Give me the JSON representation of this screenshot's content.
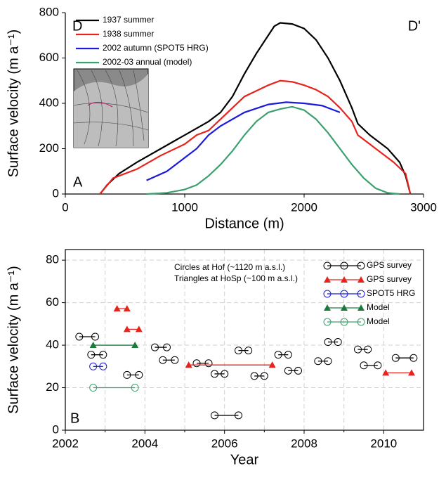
{
  "chart_data": [
    {
      "type": "line",
      "xlabel": "Distance  (m)",
      "ylabel": "Surface velocity (m a⁻¹)",
      "labels": [
        "D",
        "D'",
        "A"
      ],
      "xlim": [
        0,
        3000
      ],
      "ylim": [
        0,
        800
      ],
      "xticks": [
        0,
        1000,
        2000,
        3000
      ],
      "yticks": [
        0,
        200,
        400,
        600,
        800
      ],
      "grid": false,
      "legend": "upper left",
      "series": [
        {
          "name": "1937 summer",
          "color": "#000000",
          "x": [
            290,
            350,
            450,
            600,
            800,
            1000,
            1200,
            1300,
            1400,
            1500,
            1600,
            1700,
            1750,
            1800,
            1900,
            2000,
            2100,
            2200,
            2300,
            2400,
            2450,
            2550,
            2700,
            2800,
            2850,
            2890
          ],
          "values": [
            0,
            40,
            90,
            140,
            200,
            260,
            320,
            360,
            430,
            530,
            620,
            700,
            740,
            755,
            750,
            730,
            680,
            600,
            500,
            380,
            310,
            260,
            200,
            140,
            80,
            0
          ]
        },
        {
          "name": "1938 summer",
          "color": "#e8231d",
          "x": [
            290,
            400,
            600,
            800,
            1000,
            1100,
            1200,
            1300,
            1400,
            1500,
            1700,
            1800,
            1900,
            2000,
            2100,
            2200,
            2300,
            2400,
            2450,
            2600,
            2750,
            2850,
            2890
          ],
          "values": [
            0,
            70,
            110,
            170,
            220,
            260,
            280,
            330,
            380,
            430,
            480,
            500,
            495,
            480,
            460,
            430,
            380,
            320,
            260,
            200,
            140,
            90,
            0
          ]
        },
        {
          "name": "2002 autumn (SPOT5 HRG)",
          "color": "#1a1adb",
          "x": [
            680,
            850,
            1000,
            1100,
            1200,
            1300,
            1500,
            1700,
            1850,
            2000,
            2150,
            2300
          ],
          "values": [
            60,
            100,
            160,
            200,
            260,
            300,
            360,
            395,
            405,
            400,
            390,
            360
          ]
        },
        {
          "name": "2002-03 annual (model)",
          "color": "#3c9f6e",
          "x": [
            680,
            850,
            1000,
            1100,
            1200,
            1300,
            1400,
            1500,
            1600,
            1700,
            1800,
            1900,
            2000,
            2100,
            2200,
            2300,
            2400,
            2500,
            2600,
            2700,
            2800
          ],
          "values": [
            0,
            5,
            20,
            40,
            80,
            130,
            190,
            260,
            320,
            360,
            375,
            385,
            370,
            330,
            270,
            200,
            130,
            70,
            25,
            5,
            0
          ]
        }
      ]
    },
    {
      "type": "segments",
      "xlabel": "Year",
      "ylabel": "Surface velocity (m a⁻¹)",
      "labels": [
        "B"
      ],
      "annotations": [
        "Circles at     Hof    (~1120 m a.s.l.)",
        "Triangles at HoSp (~100 m a.s.l.)"
      ],
      "xlim": [
        2002,
        2011
      ],
      "ylim": [
        0,
        85
      ],
      "xticks": [
        2002,
        2004,
        2006,
        2008,
        2010
      ],
      "xminorticks": [
        2003,
        2005,
        2007,
        2009
      ],
      "yticks": [
        0,
        20,
        40,
        60,
        80
      ],
      "grid": true,
      "legend": "upper right",
      "series": [
        {
          "name": "GPS survey",
          "color": "#000000",
          "marker": "circle",
          "segments": [
            {
              "x": [
                2002.35,
                2002.75
              ],
              "value": 44
            },
            {
              "x": [
                2002.65,
                2002.95
              ],
              "value": 35.5
            },
            {
              "x": [
                2003.55,
                2003.85
              ],
              "value": 26
            },
            {
              "x": [
                2004.25,
                2004.55
              ],
              "value": 39
            },
            {
              "x": [
                2004.45,
                2004.75
              ],
              "value": 33
            },
            {
              "x": [
                2005.3,
                2005.6
              ],
              "value": 31.5
            },
            {
              "x": [
                2005.75,
                2006.0
              ],
              "value": 26.5
            },
            {
              "x": [
                2005.75,
                2006.35
              ],
              "value": 7
            },
            {
              "x": [
                2006.35,
                2006.6
              ],
              "value": 37.5
            },
            {
              "x": [
                2006.75,
                2007.0
              ],
              "value": 25.5
            },
            {
              "x": [
                2007.35,
                2007.6
              ],
              "value": 35.5
            },
            {
              "x": [
                2007.6,
                2007.85
              ],
              "value": 28
            },
            {
              "x": [
                2008.35,
                2008.6
              ],
              "value": 32.5
            },
            {
              "x": [
                2008.6,
                2008.85
              ],
              "value": 41.5
            },
            {
              "x": [
                2009.35,
                2009.6
              ],
              "value": 38
            },
            {
              "x": [
                2009.5,
                2009.85
              ],
              "value": 30.5
            },
            {
              "x": [
                2010.3,
                2010.75
              ],
              "value": 34
            }
          ]
        },
        {
          "name": "GPS survey",
          "color": "#e8231d",
          "marker": "triangle",
          "segments": [
            {
              "x": [
                2003.3,
                2003.55
              ],
              "value": 57.2
            },
            {
              "x": [
                2003.55,
                2003.85
              ],
              "value": 47.5
            },
            {
              "x": [
                2005.1,
                2007.2
              ],
              "value": 30.7
            },
            {
              "x": [
                2010.05,
                2010.7
              ],
              "value": 27
            }
          ]
        },
        {
          "name": "SPOT5 HRG",
          "color": "#1a1adb",
          "marker": "circle",
          "segments": [
            {
              "x": [
                2002.7,
                2002.95
              ],
              "value": 30
            }
          ]
        },
        {
          "name": "Model",
          "color": "#1a7a3a",
          "marker": "triangle",
          "segments": [
            {
              "x": [
                2002.7,
                2003.75
              ],
              "value": 40
            }
          ]
        },
        {
          "name": "Model",
          "color": "#3c9f6e",
          "marker": "circle",
          "segments": [
            {
              "x": [
                2002.7,
                2003.75
              ],
              "value": 20
            }
          ]
        }
      ]
    }
  ]
}
